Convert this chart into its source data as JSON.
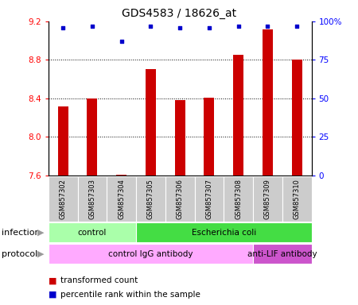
{
  "title": "GDS4583 / 18626_at",
  "samples": [
    "GSM857302",
    "GSM857303",
    "GSM857304",
    "GSM857305",
    "GSM857306",
    "GSM857307",
    "GSM857308",
    "GSM857309",
    "GSM857310"
  ],
  "transformed_count": [
    8.32,
    8.4,
    7.61,
    8.7,
    8.38,
    8.41,
    8.85,
    9.12,
    8.8
  ],
  "percentile_rank": [
    96,
    97,
    87,
    97,
    96,
    96,
    97,
    97,
    97
  ],
  "ylim": [
    7.6,
    9.2
  ],
  "yticks_left": [
    7.6,
    8.0,
    8.4,
    8.8,
    9.2
  ],
  "yticks_right": [
    0,
    25,
    50,
    75,
    100
  ],
  "bar_color": "#cc0000",
  "dot_color": "#0000cc",
  "bar_width": 0.35,
  "infection_groups": [
    {
      "label": "control",
      "start": 0,
      "end": 3,
      "color": "#aaffaa"
    },
    {
      "label": "Escherichia coli",
      "start": 3,
      "end": 9,
      "color": "#44dd44"
    }
  ],
  "protocol_groups": [
    {
      "label": "control IgG antibody",
      "start": 0,
      "end": 7,
      "color": "#ffaaff"
    },
    {
      "label": "anti-LIF antibody",
      "start": 7,
      "end": 9,
      "color": "#cc55cc"
    }
  ],
  "legend_items": [
    {
      "label": "transformed count",
      "color": "#cc0000"
    },
    {
      "label": "percentile rank within the sample",
      "color": "#0000cc"
    }
  ],
  "grid_color": "black",
  "title_fontsize": 10,
  "tick_fontsize": 7.5,
  "sample_fontsize": 6,
  "row_fontsize": 7.5,
  "legend_fontsize": 7.5,
  "left_label_color": "#888888"
}
